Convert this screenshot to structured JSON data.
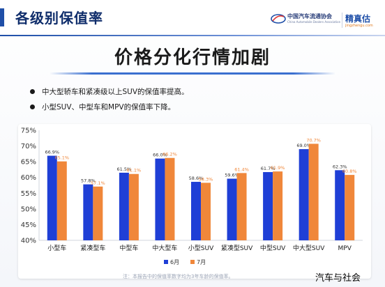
{
  "header": {
    "section_title": "各级别保值率",
    "logo_cn": "中国汽车流通协会",
    "logo_en": "China Automobile Dealers Association",
    "logo2_cn": "精真估",
    "logo2_en": "jingzhengu.com"
  },
  "main_title": "价格分化行情加剧",
  "bullets": [
    "中大型轿车和紧凑级以上SUV的保值率提高。",
    "小型SUV、中型车和MPV的保值率下降。"
  ],
  "colors": {
    "jun": "#1f3fd6",
    "jul": "#f0873a",
    "jun_label": "#1f3fd6",
    "jul_label": "#f0873a",
    "header_blue": "#0f2d6b"
  },
  "chart_data": {
    "type": "bar",
    "categories": [
      "小型车",
      "紧凑型车",
      "中型车",
      "中大型车",
      "小型SUV",
      "紧凑型SUV",
      "中型SUV",
      "中大型SUV",
      "MPV"
    ],
    "series": [
      {
        "name": "6月",
        "values": [
          66.9,
          57.8,
          61.5,
          66.0,
          58.6,
          59.6,
          61.7,
          69.0,
          62.3
        ],
        "labels": [
          "66.9%",
          "57.8%",
          "61.5%",
          "66.0%",
          "58.6%",
          "59.6%",
          "61.7%",
          "69.0%",
          "62.3%"
        ]
      },
      {
        "name": "7月",
        "values": [
          65.1,
          57.1,
          61.1,
          66.2,
          58.3,
          61.4,
          61.9,
          70.7,
          60.8
        ],
        "labels": [
          "65.1%",
          "57.1%",
          "61.1%",
          "66.2%",
          "58.3%",
          "61.4%",
          "61.9%",
          "70.7%",
          "60.8%"
        ]
      }
    ],
    "ylim": [
      40,
      75
    ],
    "yticks": [
      "40%",
      "45%",
      "50%",
      "55%",
      "60%",
      "65%",
      "70%",
      "75%"
    ],
    "ytick_values": [
      40,
      45,
      50,
      55,
      60,
      65,
      70,
      75
    ],
    "legend_position": "bottom-center",
    "grid": false
  },
  "footnote": "注：本报告中的保值率数字均为3年车龄的保值率。",
  "watermark": "汽车与社会"
}
